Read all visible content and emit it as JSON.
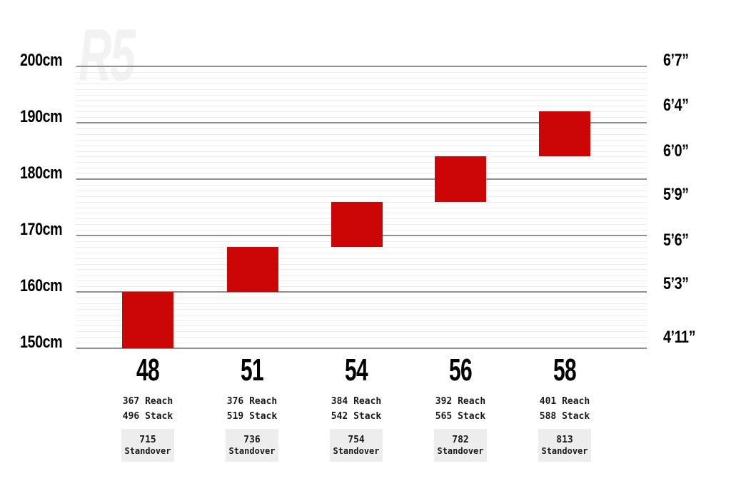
{
  "watermark": "R5",
  "colors": {
    "bar_red": "#cc0606",
    "major_gridline": "#8f8f8f",
    "minor_gridline": "#ececec",
    "standover_box_bg": "#ededed",
    "text": "#000000",
    "watermark_gray": "#f2f2f2"
  },
  "chart_data": {
    "type": "bar",
    "description_visible_text_only": "rider height fit ranges per frame size",
    "ylim_cm": [
      150,
      200
    ],
    "grid": {
      "minor_step_cm": 1,
      "major_step_cm": 10,
      "gridlines_visible": true
    },
    "left_axis_ticks": [
      {
        "label": "200cm",
        "cm": 200
      },
      {
        "label": "190cm",
        "cm": 190
      },
      {
        "label": "180cm",
        "cm": 180
      },
      {
        "label": "170cm",
        "cm": 170
      },
      {
        "label": "160cm",
        "cm": 160
      },
      {
        "label": "150cm",
        "cm": 150
      }
    ],
    "right_axis_ticks": [
      {
        "label": "6’7”",
        "aligned_cm": 200
      },
      {
        "label": "6’4”",
        "aligned_cm": 192
      },
      {
        "label": "6’0”",
        "aligned_cm": 184
      },
      {
        "label": "5’9”",
        "aligned_cm": 176
      },
      {
        "label": "5’6”",
        "aligned_cm": 168
      },
      {
        "label": "5’3”",
        "aligned_cm": 160
      },
      {
        "label": "4’11”",
        "aligned_cm": 150
      }
    ],
    "labels": {
      "reach": "Reach",
      "stack": "Stack",
      "standover": "Standover"
    },
    "sizes": [
      {
        "size": "48",
        "height_range_cm": [
          150,
          160
        ],
        "reach": "367",
        "stack": "496",
        "standover": "715"
      },
      {
        "size": "51",
        "height_range_cm": [
          160,
          168
        ],
        "reach": "376",
        "stack": "519",
        "standover": "736"
      },
      {
        "size": "54",
        "height_range_cm": [
          168,
          176
        ],
        "reach": "384",
        "stack": "542",
        "standover": "754"
      },
      {
        "size": "56",
        "height_range_cm": [
          176,
          184
        ],
        "reach": "392",
        "stack": "565",
        "standover": "782"
      },
      {
        "size": "58",
        "height_range_cm": [
          184,
          192
        ],
        "reach": "401",
        "stack": "588",
        "standover": "813"
      }
    ]
  }
}
